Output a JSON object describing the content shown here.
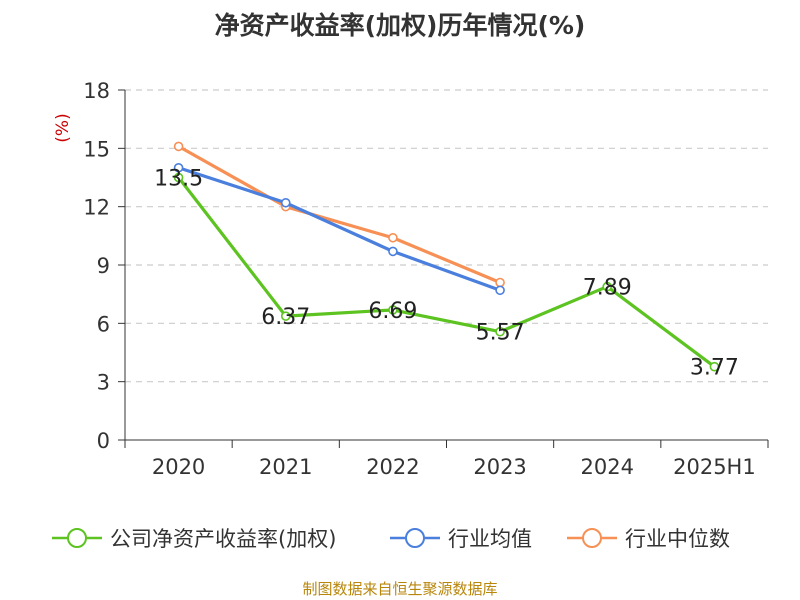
{
  "chart_data": {
    "type": "line",
    "title": "净资产收益率(加权)历年情况(%)",
    "ylabel": "(%)",
    "xlabel": "",
    "categories": [
      "2020",
      "2021",
      "2022",
      "2023",
      "2024",
      "2025H1"
    ],
    "yticks": [
      0,
      3,
      6,
      9,
      12,
      15,
      18
    ],
    "ylim": [
      0,
      18
    ],
    "grid": "horizontal-dashed",
    "legend_position": "bottom",
    "series": [
      {
        "name": "公司净资产收益率(加权)",
        "color": "#5cc320",
        "values": [
          13.5,
          6.37,
          6.69,
          5.57,
          7.89,
          3.77
        ],
        "labels": [
          "13.5",
          "6.37",
          "6.69",
          "5.57",
          "7.89",
          "3.77"
        ]
      },
      {
        "name": "行业均值",
        "color": "#4a7fdd",
        "values": [
          14.0,
          12.2,
          9.7,
          7.7,
          null,
          null
        ]
      },
      {
        "name": "行业中位数",
        "color": "#f79055",
        "values": [
          15.1,
          12.0,
          10.4,
          8.1,
          null,
          null
        ]
      }
    ]
  },
  "source": "制图数据来自恒生聚源数据库"
}
